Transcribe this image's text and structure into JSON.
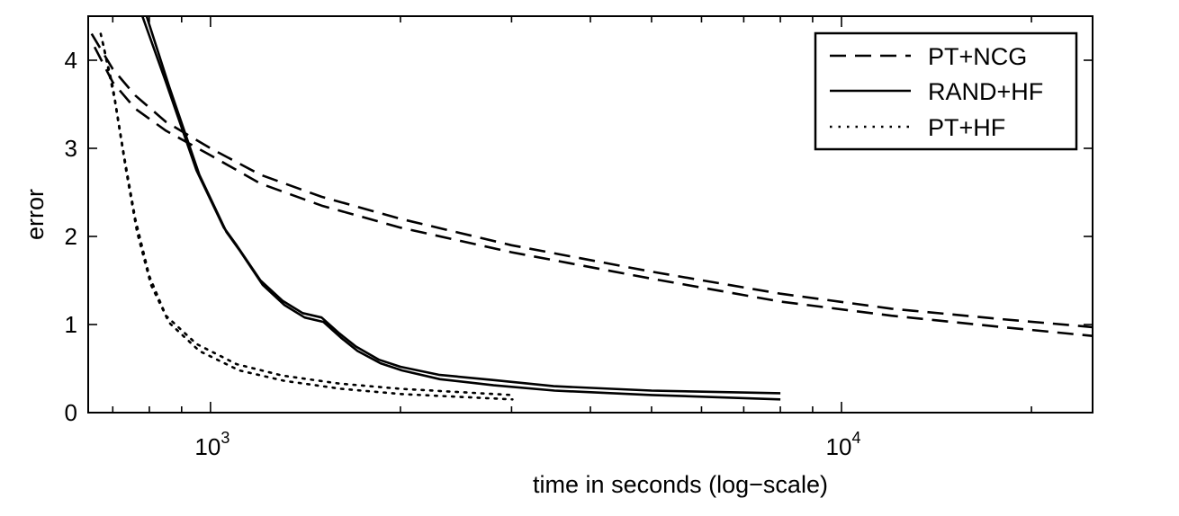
{
  "chart_data": {
    "type": "line",
    "title": "",
    "xlabel": "time in seconds (log−scale)",
    "ylabel": "error",
    "xscale": "log",
    "xlim": [
      640,
      25000
    ],
    "ylim": [
      0,
      4.5
    ],
    "grid": false,
    "legend_position": "top-right",
    "x_tick_labels": [
      {
        "base": "10",
        "exp": "3",
        "value": 1000
      },
      {
        "base": "10",
        "exp": "4",
        "value": 10000
      }
    ],
    "y_tick_labels": [
      "0",
      "1",
      "2",
      "3",
      "4"
    ],
    "colors": {
      "line": "#000000",
      "background": "#ffffff"
    },
    "series": [
      {
        "name": "PT+NCG",
        "style": "dashed",
        "curves": [
          [
            [
              648,
              4.3
            ],
            [
              700,
              3.9
            ],
            [
              760,
              3.6
            ],
            [
              850,
              3.3
            ],
            [
              1000,
              3.0
            ],
            [
              1200,
              2.7
            ],
            [
              1500,
              2.45
            ],
            [
              2000,
              2.2
            ],
            [
              3000,
              1.9
            ],
            [
              5000,
              1.6
            ],
            [
              8000,
              1.35
            ],
            [
              12000,
              1.18
            ],
            [
              18000,
              1.06
            ],
            [
              25000,
              0.97
            ]
          ],
          [
            [
              655,
              4.15
            ],
            [
              700,
              3.75
            ],
            [
              760,
              3.45
            ],
            [
              850,
              3.2
            ],
            [
              1000,
              2.92
            ],
            [
              1200,
              2.6
            ],
            [
              1500,
              2.35
            ],
            [
              2000,
              2.1
            ],
            [
              3000,
              1.82
            ],
            [
              5000,
              1.52
            ],
            [
              8000,
              1.26
            ],
            [
              12000,
              1.1
            ],
            [
              18000,
              0.97
            ],
            [
              25000,
              0.87
            ]
          ]
        ]
      },
      {
        "name": "RAND+HF",
        "style": "solid",
        "curves": [
          [
            [
              780,
              4.5
            ],
            [
              850,
              3.75
            ],
            [
              950,
              2.75
            ],
            [
              1050,
              2.1
            ],
            [
              1100,
              1.9
            ],
            [
              1200,
              1.5
            ],
            [
              1300,
              1.27
            ],
            [
              1400,
              1.13
            ],
            [
              1500,
              1.08
            ],
            [
              1600,
              0.9
            ],
            [
              1700,
              0.75
            ],
            [
              1850,
              0.6
            ],
            [
              2000,
              0.52
            ],
            [
              2300,
              0.43
            ],
            [
              2800,
              0.37
            ],
            [
              3500,
              0.3
            ],
            [
              5000,
              0.25
            ],
            [
              8000,
              0.22
            ]
          ],
          [
            [
              792,
              4.5
            ],
            [
              860,
              3.7
            ],
            [
              960,
              2.7
            ],
            [
              1060,
              2.05
            ],
            [
              1110,
              1.85
            ],
            [
              1210,
              1.45
            ],
            [
              1310,
              1.22
            ],
            [
              1410,
              1.08
            ],
            [
              1510,
              1.03
            ],
            [
              1610,
              0.85
            ],
            [
              1710,
              0.7
            ],
            [
              1860,
              0.56
            ],
            [
              2010,
              0.48
            ],
            [
              2310,
              0.38
            ],
            [
              2810,
              0.31
            ],
            [
              3510,
              0.25
            ],
            [
              5000,
              0.2
            ],
            [
              8000,
              0.15
            ]
          ]
        ]
      },
      {
        "name": "PT+HF",
        "style": "dotted",
        "curves": [
          [
            [
              670,
              4.3
            ],
            [
              700,
              3.7
            ],
            [
              730,
              2.9
            ],
            [
              760,
              2.2
            ],
            [
              800,
              1.55
            ],
            [
              850,
              1.1
            ],
            [
              950,
              0.78
            ],
            [
              1100,
              0.55
            ],
            [
              1300,
              0.42
            ],
            [
              1600,
              0.33
            ],
            [
              2000,
              0.27
            ],
            [
              3000,
              0.2
            ]
          ],
          [
            [
              675,
              4.2
            ],
            [
              705,
              3.55
            ],
            [
              735,
              2.75
            ],
            [
              765,
              2.05
            ],
            [
              805,
              1.45
            ],
            [
              860,
              1.02
            ],
            [
              960,
              0.7
            ],
            [
              1110,
              0.48
            ],
            [
              1310,
              0.36
            ],
            [
              1610,
              0.27
            ],
            [
              2010,
              0.21
            ],
            [
              3010,
              0.15
            ]
          ]
        ]
      }
    ]
  }
}
